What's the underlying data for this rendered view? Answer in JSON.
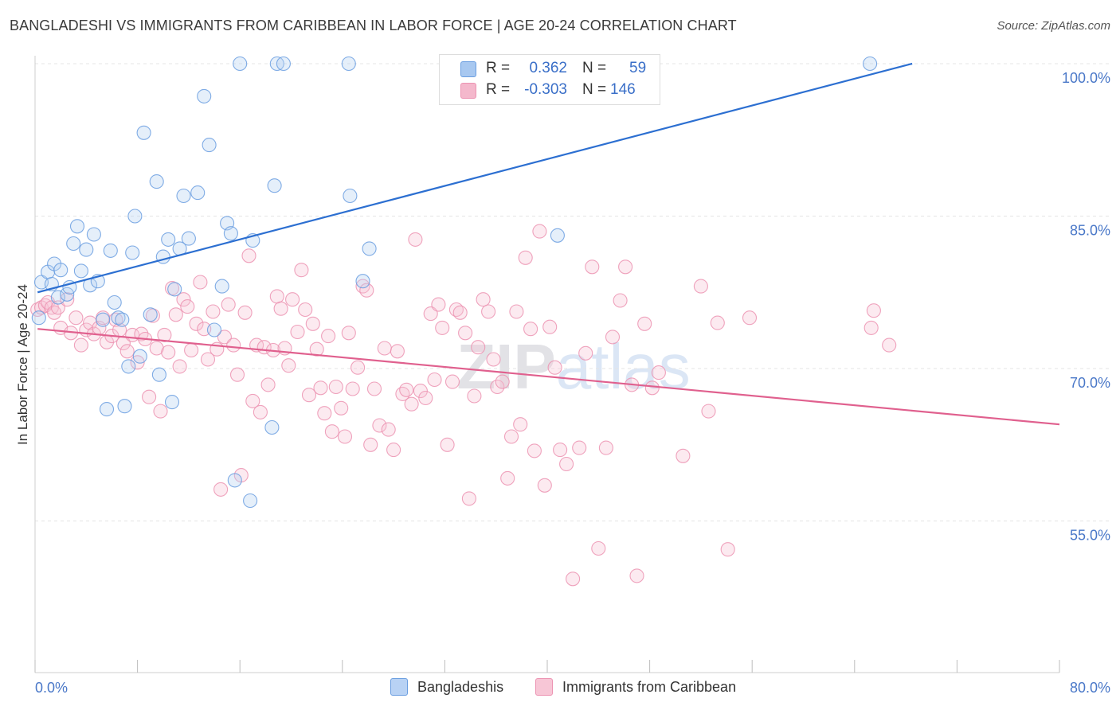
{
  "title": "BANGLADESHI VS IMMIGRANTS FROM CARIBBEAN IN LABOR FORCE | AGE 20-24 CORRELATION CHART",
  "source": "Source: ZipAtlas.com",
  "watermark": "ZIPatlas",
  "legend": {
    "rows": [
      {
        "r_label": "R =",
        "r_value": "0.362",
        "n_label": "N =",
        "n_value": "59",
        "color": "#a8c8f0"
      },
      {
        "r_label": "R =",
        "r_value": "-0.303",
        "n_label": "N =",
        "n_value": "146",
        "color": "#f4b8cc"
      }
    ]
  },
  "bottom_legend": [
    {
      "label": "Bangladeshis",
      "color": "#b8d2f4"
    },
    {
      "label": "Immigrants from Caribbean",
      "color": "#f7c6d6"
    }
  ],
  "chart_data": {
    "type": "scatter",
    "xlabel": "",
    "ylabel": "In Labor Force | Age 20-24",
    "xlim": [
      0,
      80
    ],
    "ylim": [
      40,
      102
    ],
    "x_tick_labels": [
      "0.0%",
      "80.0%"
    ],
    "y_ticks": [
      55,
      70,
      85,
      100
    ],
    "y_tick_labels": [
      "55.0%",
      "70.0%",
      "85.0%",
      "100.0%"
    ],
    "grid": true,
    "colors": {
      "blue": "#6a9ee0",
      "blue_line": "#2c6fd1",
      "pink": "#ec93b2",
      "pink_line": "#e0608e"
    },
    "series": [
      {
        "name": "Bangladeshis",
        "trend": [
          [
            0.2,
            77.5
          ],
          [
            68.5,
            100.0
          ]
        ],
        "points": [
          [
            0.3,
            75.0
          ],
          [
            0.5,
            78.5
          ],
          [
            1.0,
            79.5
          ],
          [
            1.3,
            78.3
          ],
          [
            1.5,
            80.3
          ],
          [
            1.8,
            77.0
          ],
          [
            2.0,
            79.7
          ],
          [
            2.5,
            77.3
          ],
          [
            2.7,
            78.0
          ],
          [
            3.0,
            82.3
          ],
          [
            3.3,
            84.0
          ],
          [
            3.6,
            79.6
          ],
          [
            4.0,
            81.7
          ],
          [
            4.3,
            78.2
          ],
          [
            4.6,
            83.2
          ],
          [
            4.9,
            78.6
          ],
          [
            5.3,
            74.8
          ],
          [
            5.6,
            66.0
          ],
          [
            5.9,
            81.6
          ],
          [
            6.2,
            76.5
          ],
          [
            6.5,
            75.0
          ],
          [
            6.8,
            74.8
          ],
          [
            7.0,
            66.3
          ],
          [
            7.3,
            70.2
          ],
          [
            7.6,
            81.4
          ],
          [
            7.8,
            85.0
          ],
          [
            8.2,
            71.2
          ],
          [
            8.5,
            93.2
          ],
          [
            9.0,
            75.3
          ],
          [
            9.5,
            88.4
          ],
          [
            9.7,
            69.4
          ],
          [
            10.0,
            81.0
          ],
          [
            10.4,
            82.7
          ],
          [
            10.7,
            66.7
          ],
          [
            10.9,
            77.8
          ],
          [
            11.3,
            81.8
          ],
          [
            11.6,
            87.0
          ],
          [
            12.0,
            82.8
          ],
          [
            12.7,
            87.3
          ],
          [
            13.2,
            96.8
          ],
          [
            13.6,
            92.0
          ],
          [
            14.0,
            73.8
          ],
          [
            14.6,
            78.1
          ],
          [
            15.0,
            84.3
          ],
          [
            15.3,
            83.3
          ],
          [
            15.6,
            59.0
          ],
          [
            16.0,
            100.0
          ],
          [
            16.8,
            57.0
          ],
          [
            17.0,
            82.6
          ],
          [
            18.5,
            64.2
          ],
          [
            18.7,
            88.0
          ],
          [
            18.9,
            100.0
          ],
          [
            19.4,
            100.0
          ],
          [
            24.5,
            100.0
          ],
          [
            24.6,
            87.0
          ],
          [
            25.6,
            78.6
          ],
          [
            26.1,
            81.8
          ],
          [
            40.8,
            83.1
          ],
          [
            65.2,
            100.0
          ]
        ]
      },
      {
        "name": "Immigrants from Caribbean",
        "trend": [
          [
            0.2,
            73.9
          ],
          [
            80.0,
            64.5
          ]
        ],
        "points": [
          [
            0.2,
            75.8
          ],
          [
            0.5,
            76.0
          ],
          [
            0.8,
            76.2
          ],
          [
            1.0,
            76.5
          ],
          [
            1.3,
            76.0
          ],
          [
            1.5,
            75.5
          ],
          [
            1.8,
            76.0
          ],
          [
            2.0,
            74.0
          ],
          [
            2.5,
            76.8
          ],
          [
            2.8,
            73.5
          ],
          [
            3.2,
            75.0
          ],
          [
            3.6,
            72.3
          ],
          [
            4.0,
            73.8
          ],
          [
            4.3,
            74.5
          ],
          [
            4.6,
            73.4
          ],
          [
            5.0,
            74.0
          ],
          [
            5.3,
            75.0
          ],
          [
            5.6,
            72.6
          ],
          [
            6.0,
            73.2
          ],
          [
            6.3,
            74.8
          ],
          [
            6.6,
            73.8
          ],
          [
            6.9,
            72.5
          ],
          [
            7.2,
            71.7
          ],
          [
            7.6,
            73.3
          ],
          [
            8.0,
            70.6
          ],
          [
            8.3,
            73.4
          ],
          [
            8.6,
            72.9
          ],
          [
            8.9,
            67.2
          ],
          [
            9.2,
            75.2
          ],
          [
            9.5,
            72.0
          ],
          [
            9.8,
            65.8
          ],
          [
            10.1,
            73.3
          ],
          [
            10.4,
            71.6
          ],
          [
            10.7,
            77.9
          ],
          [
            11.0,
            75.3
          ],
          [
            11.3,
            70.2
          ],
          [
            11.6,
            76.8
          ],
          [
            11.9,
            76.1
          ],
          [
            12.2,
            71.8
          ],
          [
            12.6,
            74.4
          ],
          [
            12.9,
            78.5
          ],
          [
            13.2,
            73.9
          ],
          [
            13.5,
            70.9
          ],
          [
            13.9,
            75.6
          ],
          [
            14.2,
            71.9
          ],
          [
            14.5,
            58.1
          ],
          [
            14.8,
            73.1
          ],
          [
            15.1,
            76.3
          ],
          [
            15.5,
            72.3
          ],
          [
            15.8,
            69.4
          ],
          [
            16.1,
            59.5
          ],
          [
            16.4,
            75.5
          ],
          [
            16.7,
            81.1
          ],
          [
            17.0,
            66.8
          ],
          [
            17.3,
            72.3
          ],
          [
            17.6,
            65.7
          ],
          [
            17.9,
            72.1
          ],
          [
            18.2,
            68.4
          ],
          [
            18.6,
            71.8
          ],
          [
            18.9,
            77.1
          ],
          [
            19.2,
            75.9
          ],
          [
            19.5,
            72.0
          ],
          [
            19.8,
            70.3
          ],
          [
            20.1,
            76.8
          ],
          [
            20.5,
            73.6
          ],
          [
            20.8,
            79.7
          ],
          [
            21.1,
            75.8
          ],
          [
            21.4,
            67.4
          ],
          [
            21.7,
            74.4
          ],
          [
            22.0,
            71.9
          ],
          [
            22.3,
            68.1
          ],
          [
            22.6,
            65.6
          ],
          [
            22.9,
            73.2
          ],
          [
            23.2,
            63.8
          ],
          [
            23.5,
            68.2
          ],
          [
            23.9,
            66.1
          ],
          [
            24.2,
            63.3
          ],
          [
            24.5,
            73.5
          ],
          [
            24.8,
            68.0
          ],
          [
            25.2,
            70.1
          ],
          [
            25.6,
            78.1
          ],
          [
            25.9,
            77.7
          ],
          [
            26.2,
            62.5
          ],
          [
            26.5,
            68.0
          ],
          [
            26.9,
            64.4
          ],
          [
            27.3,
            72.0
          ],
          [
            27.6,
            64.0
          ],
          [
            28.0,
            62.0
          ],
          [
            28.3,
            71.7
          ],
          [
            28.7,
            67.5
          ],
          [
            29.0,
            67.9
          ],
          [
            29.4,
            66.5
          ],
          [
            29.7,
            82.7
          ],
          [
            30.1,
            67.8
          ],
          [
            30.5,
            67.1
          ],
          [
            30.9,
            75.4
          ],
          [
            31.2,
            68.9
          ],
          [
            31.5,
            76.3
          ],
          [
            31.8,
            74.0
          ],
          [
            32.2,
            62.5
          ],
          [
            32.6,
            68.7
          ],
          [
            32.9,
            75.8
          ],
          [
            33.2,
            75.5
          ],
          [
            33.6,
            73.5
          ],
          [
            33.9,
            57.2
          ],
          [
            34.3,
            67.3
          ],
          [
            34.6,
            72.1
          ],
          [
            35.0,
            76.8
          ],
          [
            35.4,
            75.6
          ],
          [
            35.8,
            70.9
          ],
          [
            36.1,
            68.2
          ],
          [
            36.5,
            68.7
          ],
          [
            36.9,
            59.2
          ],
          [
            37.2,
            63.3
          ],
          [
            37.6,
            75.6
          ],
          [
            37.9,
            64.5
          ],
          [
            38.3,
            80.9
          ],
          [
            38.7,
            73.9
          ],
          [
            39.0,
            61.9
          ],
          [
            39.4,
            83.5
          ],
          [
            39.8,
            58.5
          ],
          [
            40.2,
            74.1
          ],
          [
            40.6,
            70.1
          ],
          [
            41.0,
            62.0
          ],
          [
            41.5,
            60.6
          ],
          [
            42.0,
            49.3
          ],
          [
            42.5,
            62.2
          ],
          [
            43.0,
            71.5
          ],
          [
            43.5,
            80.0
          ],
          [
            44.0,
            52.3
          ],
          [
            44.6,
            62.2
          ],
          [
            45.1,
            73.1
          ],
          [
            45.7,
            76.7
          ],
          [
            46.1,
            80.0
          ],
          [
            46.6,
            68.4
          ],
          [
            47.0,
            49.6
          ],
          [
            47.6,
            74.4
          ],
          [
            48.2,
            68.1
          ],
          [
            48.7,
            69.6
          ],
          [
            50.6,
            61.4
          ],
          [
            52.0,
            78.1
          ],
          [
            52.6,
            65.8
          ],
          [
            53.3,
            74.5
          ],
          [
            54.1,
            52.2
          ],
          [
            55.8,
            75.0
          ],
          [
            65.3,
            74.0
          ],
          [
            65.5,
            75.7
          ],
          [
            66.7,
            72.3
          ]
        ]
      }
    ]
  }
}
